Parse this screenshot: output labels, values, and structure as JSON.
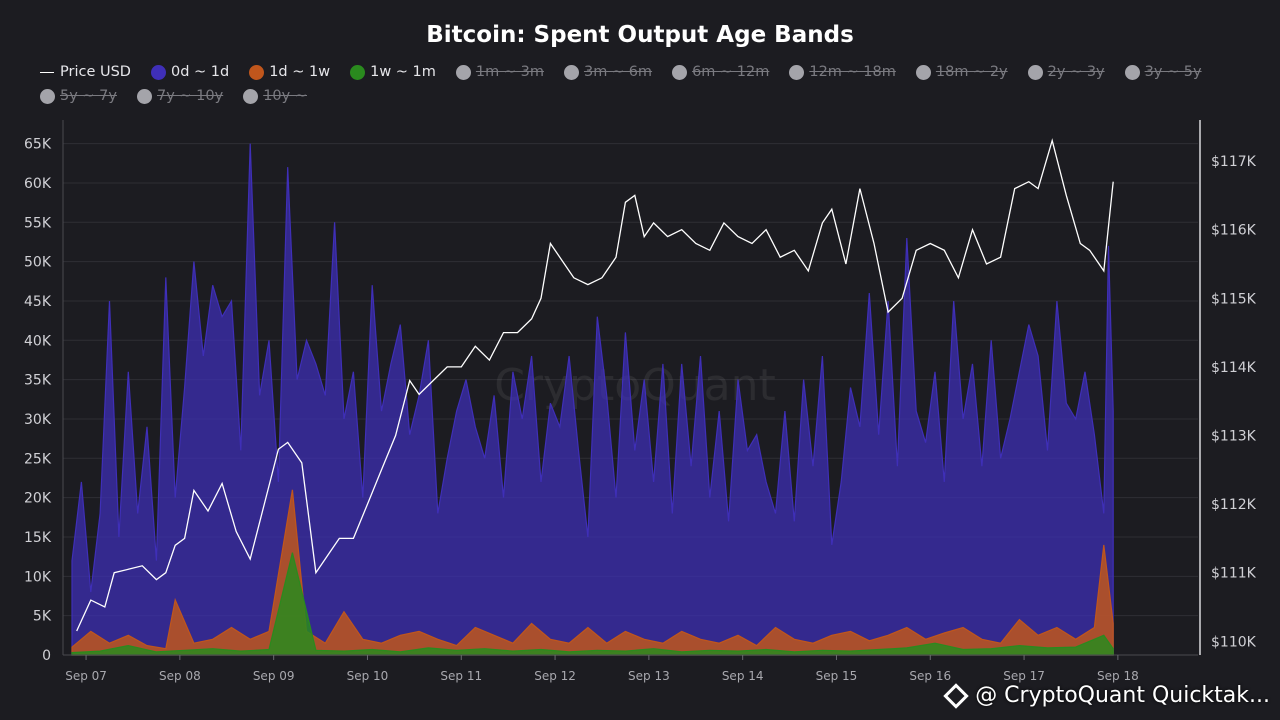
{
  "page": {
    "credit": "@ CryptoQuant Quicktak..."
  },
  "chart_data": {
    "type": "area",
    "title": "Bitcoin: Spent Output Age Bands",
    "watermark": "CryptoQuant",
    "legend": [
      {
        "label": "Price USD",
        "color": "#ffffff",
        "shape": "line",
        "active": true
      },
      {
        "label": "0d ~ 1d",
        "color": "#3f2fb8",
        "active": true
      },
      {
        "label": "1d ~ 1w",
        "color": "#c0561c",
        "active": true
      },
      {
        "label": "1w ~ 1m",
        "color": "#2a8a1e",
        "active": true
      },
      {
        "label": "1m ~ 3m",
        "color": "#a4a4aa",
        "active": false
      },
      {
        "label": "3m ~ 6m",
        "color": "#a4a4aa",
        "active": false
      },
      {
        "label": "6m ~ 12m",
        "color": "#a4a4aa",
        "active": false
      },
      {
        "label": "12m ~ 18m",
        "color": "#a4a4aa",
        "active": false
      },
      {
        "label": "18m ~ 2y",
        "color": "#a4a4aa",
        "active": false
      },
      {
        "label": "2y ~ 3y",
        "color": "#a4a4aa",
        "active": false
      },
      {
        "label": "3y ~ 5y",
        "color": "#a4a4aa",
        "active": false
      },
      {
        "label": "5y ~ 7y",
        "color": "#a4a4aa",
        "active": false
      },
      {
        "label": "7y ~ 10y",
        "color": "#a4a4aa",
        "active": false
      },
      {
        "label": "10y ~",
        "color": "#a4a4aa",
        "active": false
      }
    ],
    "x_ticks": [
      "Sep 07",
      "Sep 08",
      "Sep 09",
      "Sep 10",
      "Sep 11",
      "Sep 12",
      "Sep 13",
      "Sep 14",
      "Sep 15",
      "Sep 16",
      "Sep 17",
      "Sep 18"
    ],
    "x_range_days": [
      0,
      12
    ],
    "y_left": {
      "range": [
        0,
        68000
      ],
      "ticks": [
        0,
        5000,
        10000,
        15000,
        20000,
        25000,
        30000,
        35000,
        40000,
        45000,
        50000,
        55000,
        60000,
        65000
      ],
      "tick_labels": [
        "0",
        "5K",
        "10K",
        "15K",
        "20K",
        "25K",
        "30K",
        "35K",
        "40K",
        "45K",
        "50K",
        "55K",
        "60K",
        "65K"
      ]
    },
    "y_right": {
      "range": [
        109800,
        117600
      ],
      "ticks": [
        110000,
        111000,
        112000,
        113000,
        114000,
        115000,
        116000,
        117000
      ],
      "tick_labels": [
        "$110K",
        "$111K",
        "$112K",
        "$113K",
        "$114K",
        "$115K",
        "$116K",
        "$117K"
      ]
    },
    "series": [
      {
        "name": "Price USD",
        "axis": "right",
        "color": "#ffffff",
        "x": [
          0.05,
          0.2,
          0.35,
          0.45,
          0.6,
          0.75,
          0.9,
          1.0,
          1.1,
          1.2,
          1.3,
          1.45,
          1.6,
          1.75,
          1.9,
          2.05,
          2.2,
          2.3,
          2.45,
          2.6,
          2.75,
          2.85,
          3.0,
          3.15,
          3.3,
          3.45,
          3.6,
          3.7,
          3.85,
          4.0,
          4.15,
          4.3,
          4.45,
          4.6,
          4.75,
          4.9,
          5.0,
          5.1,
          5.2,
          5.35,
          5.5,
          5.65,
          5.8,
          5.9,
          6.0,
          6.1,
          6.2,
          6.35,
          6.5,
          6.65,
          6.8,
          6.95,
          7.1,
          7.25,
          7.4,
          7.55,
          7.7,
          7.85,
          8.0,
          8.1,
          8.25,
          8.4,
          8.55,
          8.7,
          8.85,
          9.0,
          9.15,
          9.3,
          9.45,
          9.6,
          9.75,
          9.9,
          10.05,
          10.2,
          10.3,
          10.45,
          10.6,
          10.75,
          10.85,
          11.0,
          11.1
        ],
        "y": [
          110150,
          110600,
          110500,
          111000,
          111050,
          111100,
          110900,
          111000,
          111400,
          111500,
          112200,
          111900,
          112300,
          111600,
          111200,
          112000,
          112800,
          112900,
          112600,
          111000,
          111300,
          111500,
          111500,
          112000,
          112500,
          113000,
          113800,
          113600,
          113800,
          114000,
          114000,
          114300,
          114100,
          114500,
          114500,
          114700,
          115000,
          115800,
          115600,
          115300,
          115200,
          115300,
          115600,
          116400,
          116500,
          115900,
          116100,
          115900,
          116000,
          115800,
          115700,
          116100,
          115900,
          115800,
          116000,
          115600,
          115700,
          115400,
          116100,
          116300,
          115500,
          116600,
          115800,
          114800,
          115000,
          115700,
          115800,
          115700,
          115300,
          116000,
          115500,
          115600,
          116600,
          116700,
          116600,
          117300,
          116500,
          115800,
          115700,
          115400,
          116700
        ]
      },
      {
        "name": "0d ~ 1d",
        "axis": "left",
        "color": "#3f2fb8",
        "x": [
          0.0,
          0.1,
          0.2,
          0.3,
          0.4,
          0.5,
          0.6,
          0.7,
          0.8,
          0.9,
          1.0,
          1.1,
          1.2,
          1.3,
          1.4,
          1.5,
          1.6,
          1.7,
          1.8,
          1.9,
          2.0,
          2.1,
          2.2,
          2.3,
          2.4,
          2.5,
          2.6,
          2.7,
          2.8,
          2.9,
          3.0,
          3.1,
          3.2,
          3.3,
          3.4,
          3.5,
          3.6,
          3.7,
          3.8,
          3.9,
          4.0,
          4.1,
          4.2,
          4.3,
          4.4,
          4.5,
          4.6,
          4.7,
          4.8,
          4.9,
          5.0,
          5.1,
          5.2,
          5.3,
          5.4,
          5.5,
          5.6,
          5.7,
          5.8,
          5.9,
          6.0,
          6.1,
          6.2,
          6.3,
          6.4,
          6.5,
          6.6,
          6.7,
          6.8,
          6.9,
          7.0,
          7.1,
          7.2,
          7.3,
          7.4,
          7.5,
          7.6,
          7.7,
          7.8,
          7.9,
          8.0,
          8.1,
          8.2,
          8.3,
          8.4,
          8.5,
          8.6,
          8.7,
          8.8,
          8.9,
          9.0,
          9.1,
          9.2,
          9.3,
          9.4,
          9.5,
          9.6,
          9.7,
          9.8,
          9.9,
          10.0,
          10.1,
          10.2,
          10.3,
          10.4,
          10.5,
          10.6,
          10.7,
          10.8,
          10.9,
          11.0,
          11.05,
          11.1
        ],
        "y": [
          12000,
          22000,
          8000,
          18000,
          45000,
          15000,
          36000,
          18000,
          29000,
          12000,
          48000,
          20000,
          34000,
          50000,
          38000,
          47000,
          43000,
          45000,
          26000,
          65000,
          33000,
          40000,
          22000,
          62000,
          35000,
          40000,
          37000,
          33000,
          55000,
          30000,
          36000,
          20000,
          47000,
          31000,
          37000,
          42000,
          28000,
          33000,
          40000,
          18000,
          25000,
          31000,
          35000,
          29000,
          25000,
          33000,
          20000,
          36000,
          30000,
          38000,
          22000,
          32000,
          29000,
          38000,
          26000,
          15000,
          43000,
          33000,
          20000,
          41000,
          26000,
          35000,
          22000,
          37000,
          18000,
          37000,
          24000,
          38000,
          20000,
          31000,
          17000,
          35000,
          26000,
          28000,
          22000,
          18000,
          31000,
          17000,
          35000,
          24000,
          38000,
          14000,
          22000,
          34000,
          29000,
          46000,
          28000,
          45000,
          24000,
          53000,
          31000,
          27000,
          36000,
          22000,
          45000,
          30000,
          37000,
          24000,
          40000,
          25000,
          30000,
          36000,
          42000,
          38000,
          26000,
          45000,
          32000,
          30000,
          36000,
          28000,
          18000,
          52000,
          31000
        ]
      },
      {
        "name": "1d ~ 1w",
        "axis": "left",
        "color": "#c0561c",
        "x": [
          0.0,
          0.2,
          0.4,
          0.6,
          0.8,
          1.0,
          1.1,
          1.3,
          1.5,
          1.7,
          1.9,
          2.1,
          2.35,
          2.5,
          2.7,
          2.9,
          3.1,
          3.3,
          3.5,
          3.7,
          3.9,
          4.1,
          4.3,
          4.5,
          4.7,
          4.9,
          5.1,
          5.3,
          5.5,
          5.7,
          5.9,
          6.1,
          6.3,
          6.5,
          6.7,
          6.9,
          7.1,
          7.3,
          7.5,
          7.7,
          7.9,
          8.1,
          8.3,
          8.5,
          8.7,
          8.9,
          9.1,
          9.3,
          9.5,
          9.7,
          9.9,
          10.1,
          10.3,
          10.5,
          10.7,
          10.9,
          11.0,
          11.1
        ],
        "y": [
          1000,
          3000,
          1500,
          2500,
          1200,
          800,
          7000,
          1500,
          2000,
          3500,
          2000,
          3000,
          21000,
          3000,
          1500,
          5500,
          2000,
          1500,
          2500,
          3000,
          2000,
          1200,
          3500,
          2500,
          1500,
          4000,
          2000,
          1500,
          3500,
          1500,
          3000,
          2000,
          1500,
          3000,
          2000,
          1500,
          2500,
          1200,
          3500,
          2000,
          1500,
          2500,
          3000,
          1800,
          2500,
          3500,
          2000,
          2800,
          3500,
          2000,
          1500,
          4500,
          2500,
          3500,
          2000,
          3500,
          14000,
          4000
        ]
      },
      {
        "name": "1w ~ 1m",
        "axis": "left",
        "color": "#2a8a1e",
        "x": [
          0.0,
          0.3,
          0.6,
          0.9,
          1.2,
          1.5,
          1.8,
          2.1,
          2.35,
          2.6,
          2.9,
          3.2,
          3.5,
          3.8,
          4.1,
          4.4,
          4.7,
          5.0,
          5.3,
          5.6,
          5.9,
          6.2,
          6.5,
          6.8,
          7.1,
          7.4,
          7.7,
          8.0,
          8.3,
          8.6,
          8.9,
          9.2,
          9.5,
          9.8,
          10.1,
          10.4,
          10.7,
          11.0,
          11.1
        ],
        "y": [
          300,
          500,
          1200,
          400,
          600,
          800,
          500,
          700,
          13000,
          600,
          500,
          700,
          400,
          900,
          600,
          800,
          500,
          700,
          400,
          600,
          500,
          800,
          400,
          600,
          500,
          700,
          400,
          600,
          500,
          700,
          900,
          1500,
          700,
          800,
          1200,
          900,
          1000,
          2500,
          800
        ]
      }
    ]
  }
}
